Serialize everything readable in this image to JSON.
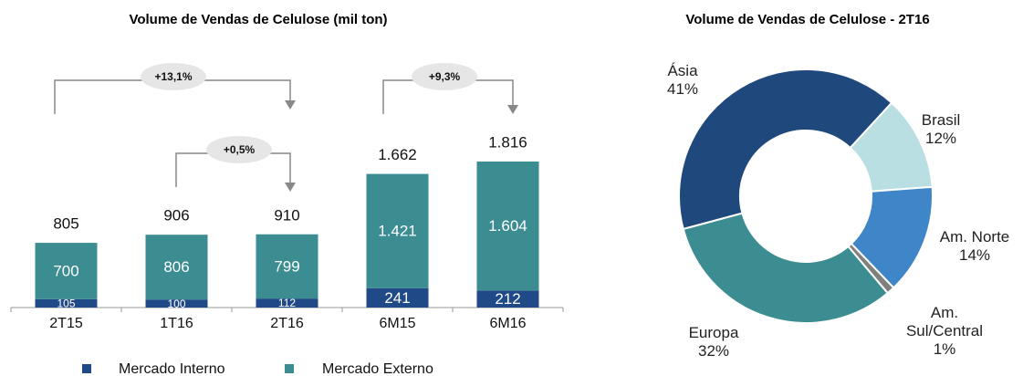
{
  "chart_data": [
    {
      "type": "stacked-bar",
      "title": "Volume de Vendas de Celulose (mil ton)",
      "categories": [
        "2T15",
        "1T16",
        "2T16",
        "6M15",
        "6M16"
      ],
      "series": [
        {
          "name": "Mercado Interno",
          "color": "#1f4a87",
          "values": [
            105,
            100,
            112,
            241,
            212
          ]
        },
        {
          "name": "Mercado Externo",
          "color": "#3b8d92",
          "values": [
            700,
            806,
            799,
            1421,
            1604
          ],
          "value_labels": [
            "700",
            "806",
            "799",
            "1.421",
            "1.604"
          ]
        }
      ],
      "totals": {
        "values": [
          805,
          906,
          910,
          1662,
          1816
        ],
        "value_labels": [
          "805",
          "906",
          "910",
          "1.662",
          "1.816"
        ]
      },
      "annotations": [
        "+13,1%",
        "+0,5%",
        "+9,3%"
      ]
    },
    {
      "type": "donut",
      "title": "Volume de Vendas  de Celulose - 2T16",
      "categories": [
        "Ásia",
        "Brasil",
        "Am. Norte",
        "Am. Sul/Central",
        "Europa"
      ],
      "values": [
        41,
        12,
        14,
        1,
        32
      ],
      "value_labels": [
        "41%",
        "12%",
        "14%",
        "1%",
        "32%"
      ],
      "colors": [
        "#1f487c",
        "#b9dfe3",
        "#3f86c8",
        "#808080",
        "#3b8d92"
      ]
    }
  ]
}
